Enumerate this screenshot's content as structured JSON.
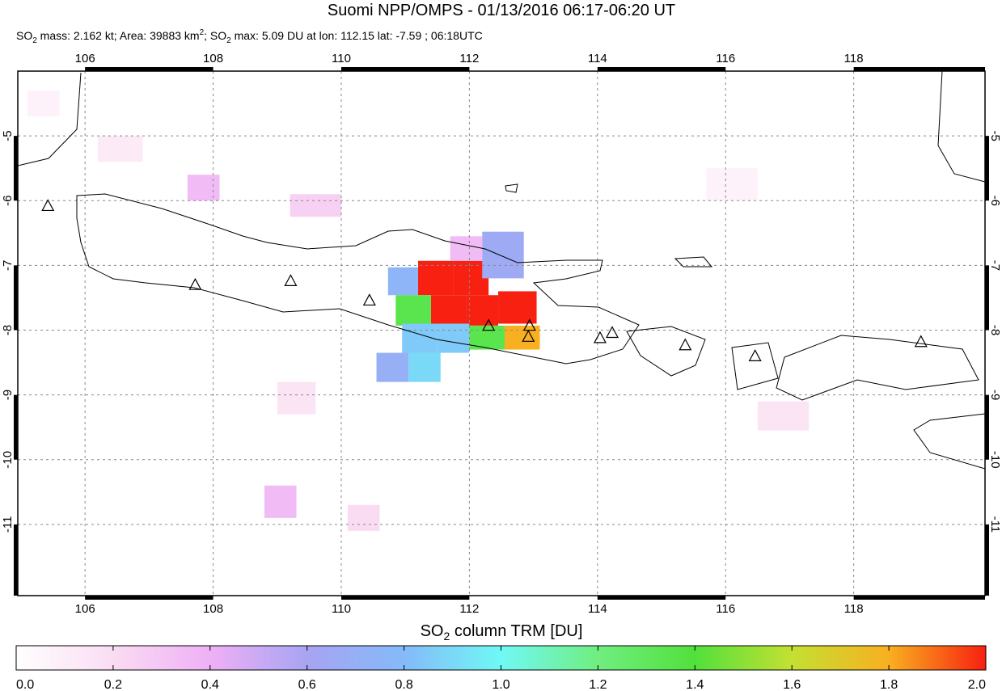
{
  "title": "Suomi NPP/OMPS - 01/13/2016 06:17-06:20 UT",
  "subtitle": [
    "SO",
    "2",
    " mass: 2.162 kt; Area: 39883 km",
    "2",
    "; SO",
    "2",
    " max: 5.09 DU at lon: 112.15 lat: -7.59 ; 06:18UTC"
  ],
  "map": {
    "xlim": [
      104.95,
      120.05
    ],
    "ylim": [
      -12.1,
      -4
    ],
    "xticks": [
      106,
      108,
      110,
      112,
      114,
      116,
      118
    ],
    "yticks": [
      -5,
      -6,
      -7,
      -8,
      -9,
      -10,
      -11
    ],
    "grid": true,
    "cells": [
      {
        "lon": [
          110.73,
          111.21
        ],
        "lat": [
          -7.03,
          -7.46
        ],
        "value": 0.75
      },
      {
        "lon": [
          111.2,
          111.75
        ],
        "lat": [
          -6.93,
          -7.46
        ],
        "value": 2.5
      },
      {
        "lon": [
          111.75,
          112.3
        ],
        "lat": [
          -6.93,
          -7.46
        ],
        "value": 3.2
      },
      {
        "lon": [
          111.4,
          111.95
        ],
        "lat": [
          -7.46,
          -7.93
        ],
        "value": 3.0
      },
      {
        "lon": [
          111.95,
          112.45
        ],
        "lat": [
          -7.46,
          -7.93
        ],
        "value": 5.09
      },
      {
        "lon": [
          112.45,
          113.05
        ],
        "lat": [
          -7.4,
          -7.9
        ],
        "value": 2.4
      },
      {
        "lon": [
          110.85,
          111.4
        ],
        "lat": [
          -7.46,
          -7.93
        ],
        "value": 1.35
      },
      {
        "lon": [
          112.2,
          112.85
        ],
        "lat": [
          -6.48,
          -7.2
        ],
        "value": 0.65
      },
      {
        "lon": [
          111.7,
          112.2
        ],
        "lat": [
          -6.55,
          -6.93
        ],
        "value": 0.35
      },
      {
        "lon": [
          110.95,
          111.5
        ],
        "lat": [
          -7.9,
          -8.35
        ],
        "value": 0.85
      },
      {
        "lon": [
          111.5,
          112.0
        ],
        "lat": [
          -7.9,
          -8.35
        ],
        "value": 0.85
      },
      {
        "lon": [
          112.0,
          112.55
        ],
        "lat": [
          -7.93,
          -8.3
        ],
        "value": 1.35
      },
      {
        "lon": [
          112.55,
          113.1
        ],
        "lat": [
          -7.93,
          -8.3
        ],
        "value": 1.8
      },
      {
        "lon": [
          110.55,
          111.05
        ],
        "lat": [
          -8.35,
          -8.8
        ],
        "value": 0.7
      },
      {
        "lon": [
          111.05,
          111.55
        ],
        "lat": [
          -8.35,
          -8.8
        ],
        "value": 0.9
      },
      {
        "lon": [
          107.6,
          108.1
        ],
        "lat": [
          -5.6,
          -6.0
        ],
        "value": 0.35
      },
      {
        "lon": [
          109.2,
          110.0
        ],
        "lat": [
          -5.9,
          -6.25
        ],
        "value": 0.25
      },
      {
        "lon": [
          108.8,
          109.3
        ],
        "lat": [
          -10.4,
          -10.9
        ],
        "value": 0.35
      },
      {
        "lon": [
          110.1,
          110.6
        ],
        "lat": [
          -10.7,
          -11.1
        ],
        "value": 0.2
      },
      {
        "lon": [
          116.5,
          117.3
        ],
        "lat": [
          -9.1,
          -9.55
        ],
        "value": 0.15
      },
      {
        "lon": [
          106.2,
          106.9
        ],
        "lat": [
          -5.0,
          -5.4
        ],
        "value": 0.12
      },
      {
        "lon": [
          105.1,
          105.6
        ],
        "lat": [
          -4.3,
          -4.7
        ],
        "value": 0.08
      },
      {
        "lon": [
          115.7,
          116.5
        ],
        "lat": [
          -5.5,
          -6.0
        ],
        "value": 0.08
      },
      {
        "lon": [
          109.0,
          109.6
        ],
        "lat": [
          -8.8,
          -9.3
        ],
        "value": 0.15
      }
    ],
    "volcanoes": [
      {
        "lon": 105.42,
        "lat": -6.09
      },
      {
        "lon": 107.72,
        "lat": -7.31
      },
      {
        "lon": 109.21,
        "lat": -7.25
      },
      {
        "lon": 110.44,
        "lat": -7.55
      },
      {
        "lon": 112.3,
        "lat": -7.94
      },
      {
        "lon": 112.94,
        "lat": -7.94
      },
      {
        "lon": 112.92,
        "lat": -8.11
      },
      {
        "lon": 114.04,
        "lat": -8.13
      },
      {
        "lon": 114.23,
        "lat": -8.05
      },
      {
        "lon": 115.37,
        "lat": -8.24
      },
      {
        "lon": 116.46,
        "lat": -8.41
      },
      {
        "lon": 119.05,
        "lat": -8.19
      }
    ]
  },
  "colorbar": {
    "title": [
      "SO",
      "2",
      " column TRM [DU]"
    ],
    "clim": [
      0,
      2
    ],
    "ticks": [
      {
        "value": 0,
        "label": "0.0"
      },
      0.2,
      0.4,
      0.6,
      0.8,
      {
        "value": 1,
        "label": "1.0"
      },
      1.2,
      1.4,
      1.6,
      1.8,
      {
        "value": 2,
        "label": "2.0"
      }
    ]
  }
}
